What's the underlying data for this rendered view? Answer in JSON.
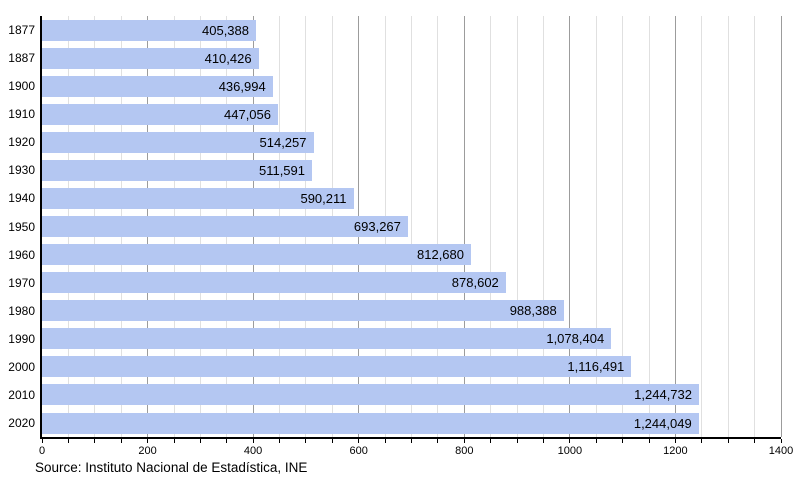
{
  "chart_data": {
    "type": "bar",
    "orientation": "horizontal",
    "title": "",
    "xlabel": "",
    "ylabel": "",
    "categories": [
      "1877",
      "1887",
      "1900",
      "1910",
      "1920",
      "1930",
      "1940",
      "1950",
      "1960",
      "1970",
      "1980",
      "1990",
      "2000",
      "2010",
      "2020"
    ],
    "values": [
      405388,
      410426,
      436994,
      447056,
      514257,
      511591,
      590211,
      693267,
      812680,
      878602,
      988388,
      1078404,
      1116491,
      1244732,
      1244049
    ],
    "value_labels": [
      "405,388",
      "410,426",
      "436,994",
      "447,056",
      "514,257",
      "511,591",
      "590,211",
      "693,267",
      "812,680",
      "878,602",
      "988,388",
      "1,078,404",
      "1,116,491",
      "1,244,732",
      "1,244,049"
    ],
    "axis": {
      "xmin": 0,
      "xmax": 1400,
      "major_step": 200,
      "minor_step": 50,
      "unit_divisor": 1000,
      "tick_labels": [
        "0",
        "200",
        "400",
        "600",
        "800",
        "1000",
        "1200",
        "1400"
      ]
    },
    "legend": null,
    "grid": "vertical-minor-and-major"
  },
  "source": {
    "text": "Source: Instituto Nacional de Estadística, INE"
  },
  "colors": {
    "bar": "#b4c7f2",
    "grid_minor": "#e0e0e0",
    "grid_major": "#9c9c9c",
    "axis": "#000000",
    "text": "#000000",
    "background": "#ffffff"
  }
}
